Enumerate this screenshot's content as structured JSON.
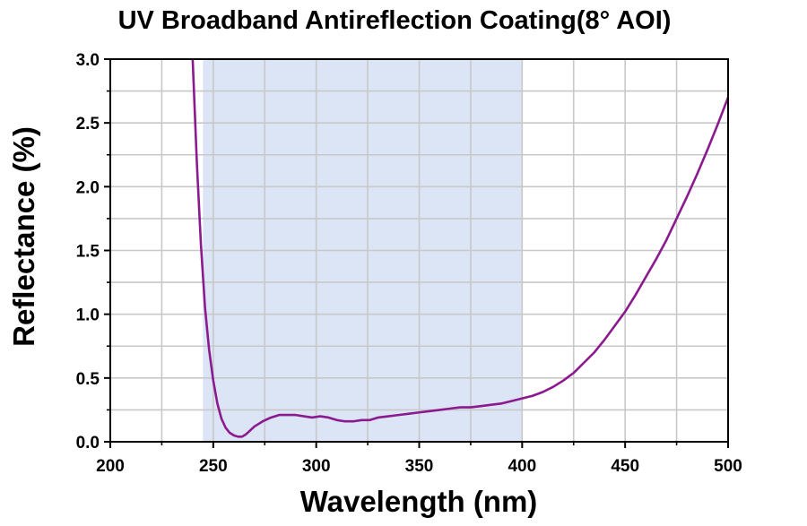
{
  "chart_data": {
    "type": "line",
    "title": "UV Broadband Antireflection Coating(8° AOI)",
    "xlabel": "Wavelength (nm)",
    "ylabel": "Reflectance (%)",
    "xlim": [
      200,
      500
    ],
    "ylim": [
      0.0,
      3.0
    ],
    "x_ticks": [
      200,
      250,
      300,
      350,
      400,
      450,
      500
    ],
    "x_tick_labels": [
      "200",
      "250",
      "300",
      "350",
      "400",
      "450",
      "500"
    ],
    "y_ticks": [
      0.0,
      0.5,
      1.0,
      1.5,
      2.0,
      2.5,
      3.0
    ],
    "y_tick_labels": [
      "0.0",
      "0.5",
      "1.0",
      "1.5",
      "2.0",
      "2.5",
      "3.0"
    ],
    "grid": true,
    "legend": "none",
    "shaded_band": {
      "x_range": [
        245,
        400
      ],
      "color": "#dbe5f6"
    },
    "series": [
      {
        "color": "#8b1a8e",
        "x": [
          240,
          242,
          244,
          246,
          248,
          250,
          252,
          254,
          256,
          258,
          260,
          262,
          264,
          266,
          268,
          270,
          274,
          278,
          282,
          286,
          290,
          294,
          298,
          302,
          306,
          310,
          314,
          318,
          322,
          326,
          330,
          335,
          340,
          345,
          350,
          355,
          360,
          365,
          370,
          375,
          380,
          385,
          390,
          395,
          400,
          405,
          410,
          415,
          420,
          425,
          430,
          435,
          440,
          445,
          450,
          455,
          460,
          465,
          470,
          475,
          480,
          485,
          490,
          495,
          500
        ],
        "y": [
          3.0,
          2.2,
          1.55,
          1.05,
          0.72,
          0.48,
          0.3,
          0.18,
          0.11,
          0.07,
          0.05,
          0.04,
          0.04,
          0.06,
          0.09,
          0.12,
          0.16,
          0.19,
          0.21,
          0.21,
          0.21,
          0.2,
          0.19,
          0.2,
          0.19,
          0.17,
          0.16,
          0.16,
          0.17,
          0.17,
          0.19,
          0.2,
          0.21,
          0.22,
          0.23,
          0.24,
          0.25,
          0.26,
          0.27,
          0.27,
          0.28,
          0.29,
          0.3,
          0.32,
          0.34,
          0.36,
          0.39,
          0.43,
          0.48,
          0.54,
          0.62,
          0.7,
          0.8,
          0.91,
          1.02,
          1.15,
          1.29,
          1.43,
          1.58,
          1.75,
          1.92,
          2.1,
          2.29,
          2.49,
          2.7
        ]
      }
    ]
  }
}
